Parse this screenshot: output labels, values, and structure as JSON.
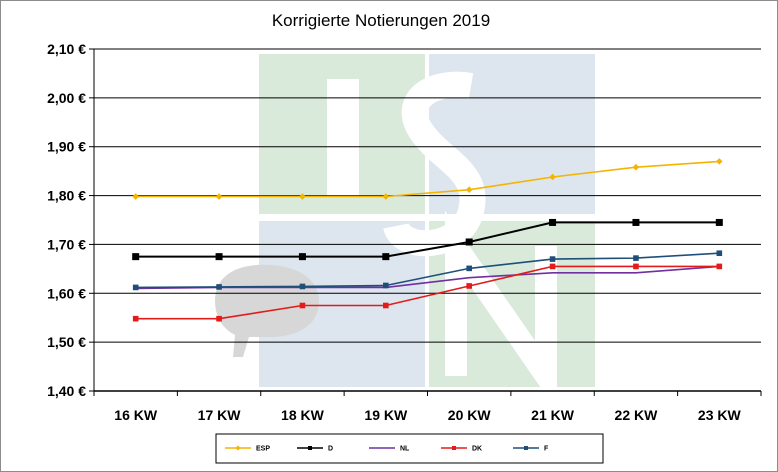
{
  "chart_data": {
    "type": "line",
    "title": "Korrigierte Notierungen 2019",
    "categories": [
      "16 KW",
      "17 KW",
      "18 KW",
      "19 KW",
      "20 KW",
      "21 KW",
      "22 KW",
      "23 KW"
    ],
    "ylim": [
      1.4,
      2.1
    ],
    "yticks": [
      "1,40 €",
      "1,50 €",
      "1,60 €",
      "1,70 €",
      "1,80 €",
      "1,90 €",
      "2,00 €",
      "2,10 €"
    ],
    "grid": true,
    "legend": "bottom",
    "series": [
      {
        "name": "ESP",
        "color": "#f5b400",
        "marker": "diamond",
        "values": [
          1.798,
          1.798,
          1.798,
          1.798,
          1.812,
          1.838,
          1.858,
          1.87
        ]
      },
      {
        "name": "D",
        "color": "#000000",
        "marker": "square",
        "values": [
          1.675,
          1.675,
          1.675,
          1.675,
          1.705,
          1.745,
          1.745,
          1.745
        ]
      },
      {
        "name": "NL",
        "color": "#7030a0",
        "marker": "none",
        "values": [
          1.61,
          1.612,
          1.612,
          1.612,
          1.632,
          1.642,
          1.642,
          1.655
        ]
      },
      {
        "name": "DK",
        "color": "#e31b1b",
        "marker": "square",
        "values": [
          1.548,
          1.548,
          1.575,
          1.575,
          1.615,
          1.655,
          1.655,
          1.655
        ]
      },
      {
        "name": "F",
        "color": "#1f4e79",
        "marker": "square",
        "values": [
          1.612,
          1.613,
          1.614,
          1.616,
          1.651,
          1.67,
          1.672,
          1.682
        ]
      }
    ]
  },
  "watermark": {
    "colors": {
      "green": "#d9eadb",
      "blue": "#dde5ef"
    }
  }
}
